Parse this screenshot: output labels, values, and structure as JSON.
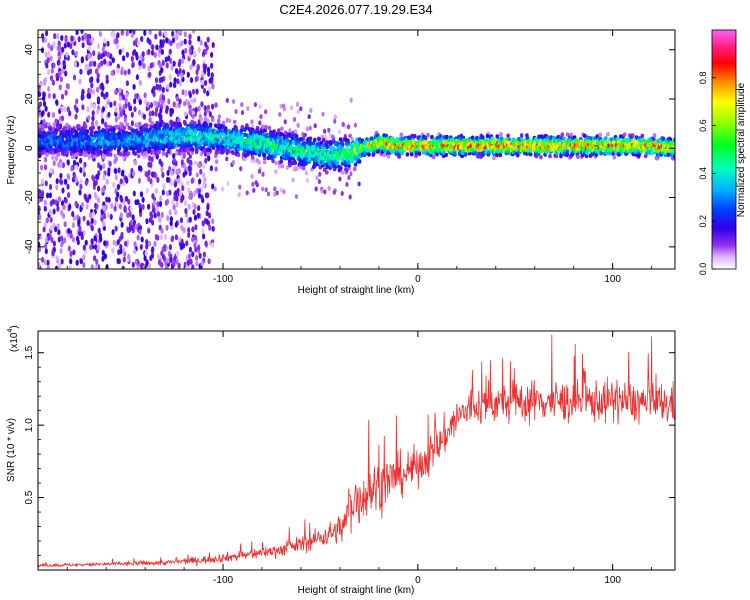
{
  "figure_title": "C2E4.2026.077.19.29.E34",
  "chart_data": [
    {
      "type": "heatmap",
      "title": "C2E4.2026.077.19.29.E34",
      "xlabel": "Height of straight line (km)",
      "ylabel": "Frequency (Hz)",
      "xlim": [
        -195,
        132
      ],
      "ylim": [
        -49,
        48
      ],
      "xticks": [
        -100,
        0,
        100
      ],
      "xtick_labels": [
        "-100",
        "0",
        "100"
      ],
      "yticks": [
        -40,
        -20,
        0,
        20,
        40
      ],
      "ytick_labels": [
        "-40",
        "-20",
        "0",
        "20",
        "40"
      ],
      "colorbar": {
        "label": "Normalized spectral amplitude",
        "range": [
          0,
          1
        ],
        "ticks": [
          0.0,
          0.2,
          0.4,
          0.6,
          0.8
        ],
        "tick_labels": [
          "0.0",
          "0.2",
          "0.4",
          "0.6",
          "0.8"
        ],
        "colormap": [
          "#ffffff",
          "#e8c8ff",
          "#a040f0",
          "#6000e0",
          "#2020ff",
          "#00c8ff",
          "#00ff80",
          "#60ff00",
          "#ffff00",
          "#ff8000",
          "#ff0000",
          "#ff40b0",
          "#ff60ff"
        ]
      },
      "ridge": {
        "description": "dominant frequency vs height",
        "x": [
          -195,
          -150,
          -120,
          -100,
          -80,
          -60,
          -45,
          -35,
          -25,
          -20,
          -10,
          0,
          20,
          40,
          60,
          80,
          100,
          120,
          132
        ],
        "freq": [
          3,
          3,
          5,
          4,
          2,
          -1,
          -3,
          -2,
          1,
          2,
          1,
          1,
          1,
          1,
          1,
          1,
          1,
          1,
          0
        ],
        "peak_amplitude": [
          0.3,
          0.35,
          0.45,
          0.45,
          0.5,
          0.5,
          0.5,
          0.6,
          0.7,
          0.8,
          0.85,
          0.85,
          0.85,
          0.85,
          0.85,
          0.85,
          0.85,
          0.85,
          0.8
        ]
      }
    },
    {
      "type": "line",
      "xlabel": "Height of straight line (km)",
      "ylabel": "SNR (10 * v/v)",
      "y_scale_label": "(x10",
      "y_scale_exponent": "4",
      "y_scale_close": ")",
      "xlim": [
        -195,
        132
      ],
      "ylim": [
        0,
        1.65
      ],
      "xticks": [
        -100,
        0,
        100
      ],
      "xtick_labels": [
        "-100",
        "0",
        "100"
      ],
      "yticks": [
        0.5,
        1.0,
        1.5
      ],
      "ytick_labels": [
        "0.5",
        "1.0",
        "1.5"
      ],
      "series": [
        {
          "name": "SNR",
          "color": "#ee3030",
          "x": [
            -195,
            -160,
            -130,
            -110,
            -90,
            -70,
            -55,
            -45,
            -38,
            -35,
            -30,
            -25,
            -20,
            -15,
            -10,
            -5,
            0,
            5,
            10,
            15,
            20,
            25,
            30,
            40,
            60,
            80,
            100,
            120,
            132
          ],
          "y": [
            0.03,
            0.04,
            0.05,
            0.07,
            0.1,
            0.14,
            0.2,
            0.25,
            0.3,
            0.45,
            0.5,
            0.55,
            0.58,
            0.62,
            0.65,
            0.68,
            0.72,
            0.78,
            0.85,
            0.95,
            1.05,
            1.1,
            1.13,
            1.15,
            1.17,
            1.16,
            1.17,
            1.15,
            1.14
          ],
          "noise": [
            0.01,
            0.015,
            0.02,
            0.03,
            0.04,
            0.05,
            0.07,
            0.09,
            0.12,
            0.2,
            0.22,
            0.22,
            0.2,
            0.18,
            0.17,
            0.15,
            0.15,
            0.15,
            0.15,
            0.15,
            0.15,
            0.15,
            0.15,
            0.15,
            0.16,
            0.16,
            0.16,
            0.16,
            0.16
          ]
        }
      ]
    }
  ]
}
